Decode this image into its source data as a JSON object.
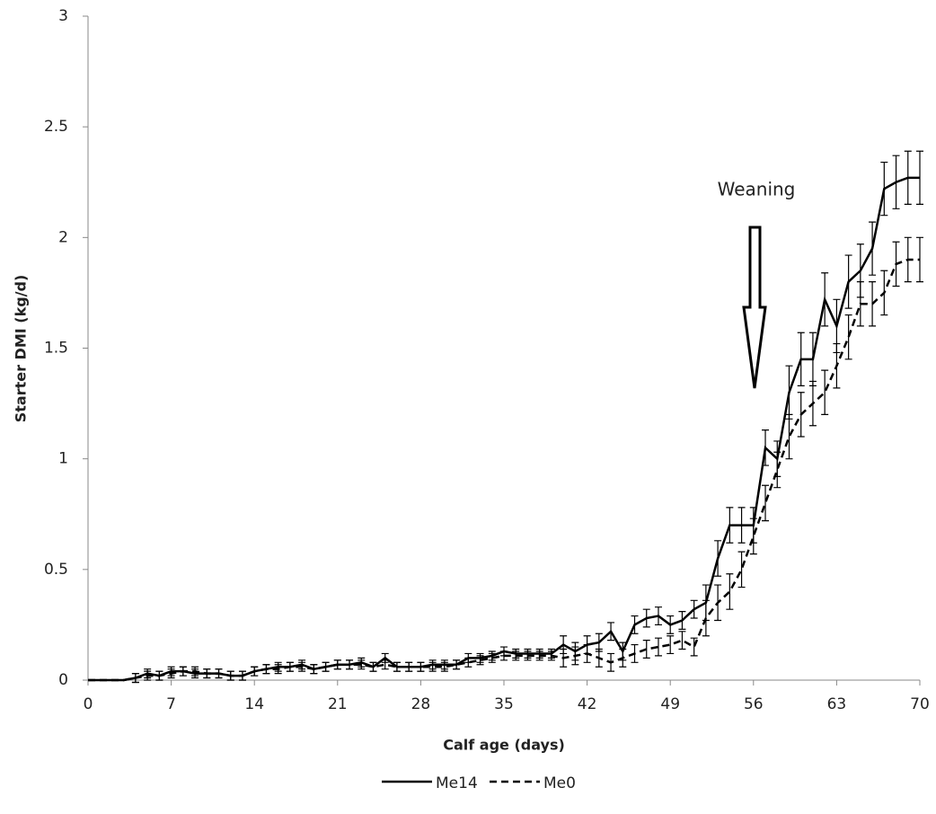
{
  "chart_data": {
    "type": "line",
    "annotation": "Weaning",
    "x_label": "Calf age (days)",
    "y_label": "Starter DMI (kg/d)",
    "x": [
      0,
      1,
      2,
      3,
      4,
      5,
      6,
      7,
      8,
      9,
      10,
      11,
      12,
      13,
      14,
      15,
      16,
      17,
      18,
      19,
      20,
      21,
      22,
      23,
      24,
      25,
      26,
      27,
      28,
      29,
      30,
      31,
      32,
      33,
      34,
      35,
      36,
      37,
      38,
      39,
      40,
      41,
      42,
      43,
      44,
      45,
      46,
      47,
      48,
      49,
      50,
      51,
      52,
      53,
      54,
      55,
      56,
      57,
      58,
      59,
      60,
      61,
      62,
      63,
      64,
      65,
      66,
      67,
      68,
      69,
      70
    ],
    "xlim": [
      0,
      70
    ],
    "xticks": [
      0,
      7,
      14,
      21,
      28,
      35,
      42,
      49,
      56,
      63,
      70
    ],
    "ylim": [
      0,
      3
    ],
    "yticks": [
      0,
      0.5,
      1,
      1.5,
      2,
      2.5,
      3
    ],
    "grid": false,
    "legend": "bottom",
    "series": [
      {
        "name": "Me14",
        "color": "#000000",
        "dash": "solid",
        "values": [
          0,
          0,
          0,
          0,
          0.01,
          0.03,
          0.02,
          0.04,
          0.04,
          0.03,
          0.03,
          0.03,
          0.02,
          0.02,
          0.04,
          0.05,
          0.06,
          0.06,
          0.07,
          0.05,
          0.06,
          0.07,
          0.07,
          0.08,
          0.06,
          0.1,
          0.06,
          0.06,
          0.06,
          0.07,
          0.07,
          0.07,
          0.1,
          0.1,
          0.11,
          0.13,
          0.12,
          0.12,
          0.12,
          0.12,
          0.16,
          0.13,
          0.16,
          0.17,
          0.22,
          0.13,
          0.25,
          0.28,
          0.29,
          0.25,
          0.27,
          0.32,
          0.35,
          0.55,
          0.7,
          0.7,
          0.7,
          1.05,
          1.0,
          1.3,
          1.45,
          1.45,
          1.72,
          1.6,
          1.8,
          1.85,
          1.95,
          2.22,
          2.25,
          2.27,
          2.27
        ],
        "errors": [
          0,
          0,
          0,
          0,
          0.02,
          0.02,
          0.02,
          0.02,
          0.02,
          0.02,
          0.02,
          0.02,
          0.02,
          0.02,
          0.02,
          0.02,
          0.02,
          0.02,
          0.02,
          0.02,
          0.02,
          0.02,
          0.02,
          0.02,
          0.02,
          0.02,
          0.02,
          0.02,
          0.02,
          0.02,
          0.02,
          0.02,
          0.02,
          0.02,
          0.02,
          0.02,
          0.02,
          0.02,
          0.02,
          0.02,
          0.04,
          0.04,
          0.04,
          0.04,
          0.04,
          0.04,
          0.04,
          0.04,
          0.04,
          0.04,
          0.04,
          0.04,
          0.08,
          0.08,
          0.08,
          0.08,
          0.08,
          0.08,
          0.08,
          0.12,
          0.12,
          0.12,
          0.12,
          0.12,
          0.12,
          0.12,
          0.12,
          0.12,
          0.12,
          0.12,
          0.12
        ]
      },
      {
        "name": "Me0",
        "color": "#000000",
        "dash": "dashed",
        "values": [
          0,
          0,
          0,
          0,
          0.01,
          0.02,
          0.02,
          0.03,
          0.04,
          0.04,
          0.03,
          0.03,
          0.02,
          0.02,
          0.04,
          0.05,
          0.05,
          0.06,
          0.06,
          0.05,
          0.06,
          0.07,
          0.07,
          0.07,
          0.06,
          0.07,
          0.06,
          0.06,
          0.06,
          0.06,
          0.06,
          0.07,
          0.08,
          0.09,
          0.1,
          0.11,
          0.11,
          0.11,
          0.11,
          0.11,
          0.1,
          0.11,
          0.12,
          0.1,
          0.08,
          0.1,
          0.12,
          0.14,
          0.15,
          0.16,
          0.18,
          0.15,
          0.28,
          0.35,
          0.4,
          0.5,
          0.65,
          0.8,
          0.95,
          1.1,
          1.2,
          1.25,
          1.3,
          1.42,
          1.55,
          1.7,
          1.7,
          1.75,
          1.88,
          1.9,
          1.9
        ],
        "errors": [
          0,
          0,
          0,
          0,
          0.02,
          0.02,
          0.02,
          0.02,
          0.02,
          0.02,
          0.02,
          0.02,
          0.02,
          0.02,
          0.02,
          0.02,
          0.02,
          0.02,
          0.02,
          0.02,
          0.02,
          0.02,
          0.02,
          0.02,
          0.02,
          0.02,
          0.02,
          0.02,
          0.02,
          0.02,
          0.02,
          0.02,
          0.02,
          0.02,
          0.02,
          0.02,
          0.02,
          0.02,
          0.02,
          0.02,
          0.04,
          0.04,
          0.04,
          0.04,
          0.04,
          0.04,
          0.04,
          0.04,
          0.04,
          0.04,
          0.04,
          0.04,
          0.08,
          0.08,
          0.08,
          0.08,
          0.08,
          0.08,
          0.08,
          0.1,
          0.1,
          0.1,
          0.1,
          0.1,
          0.1,
          0.1,
          0.1,
          0.1,
          0.1,
          0.1,
          0.1
        ]
      }
    ]
  }
}
